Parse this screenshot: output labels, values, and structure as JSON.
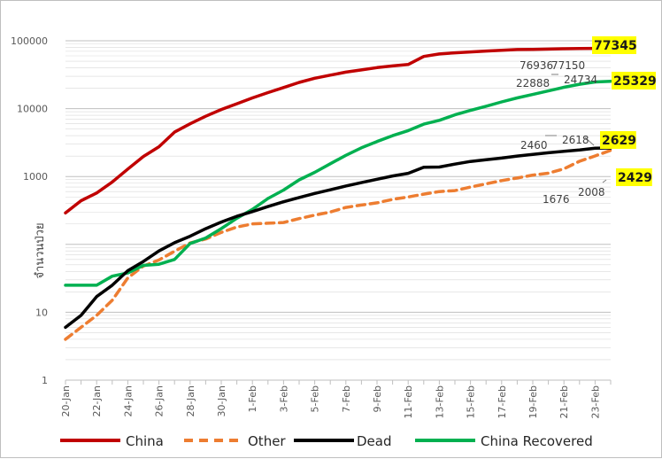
{
  "chart_data": {
    "type": "line",
    "title": "",
    "xlabel": "",
    "ylabel": "จำนวนป่วย",
    "yscale": "log",
    "ylim": [
      1,
      100000
    ],
    "yticks": [
      "1",
      "10",
      "1000",
      "10000",
      "100000"
    ],
    "grid": true,
    "legend_position": "bottom",
    "x": [
      "20-Jan",
      "21-Jan",
      "22-Jan",
      "23-Jan",
      "24-Jan",
      "25-Jan",
      "26-Jan",
      "27-Jan",
      "28-Jan",
      "29-Jan",
      "30-Jan",
      "31-Jan",
      "1-Feb",
      "2-Feb",
      "3-Feb",
      "4-Feb",
      "5-Feb",
      "6-Feb",
      "7-Feb",
      "8-Feb",
      "9-Feb",
      "10-Feb",
      "11-Feb",
      "12-Feb",
      "13-Feb",
      "14-Feb",
      "15-Feb",
      "16-Feb",
      "17-Feb",
      "18-Feb",
      "19-Feb",
      "20-Feb",
      "21-Feb",
      "22-Feb",
      "23-Feb",
      "24-Feb"
    ],
    "xtick_labels": [
      "20-Jan",
      "22-Jan",
      "24-Jan",
      "26-Jan",
      "28-Jan",
      "30-Jan",
      "1-Feb",
      "3-Feb",
      "5-Feb",
      "7-Feb",
      "9-Feb",
      "11-Feb",
      "13-Feb",
      "15-Feb",
      "17-Feb",
      "19-Feb",
      "21-Feb",
      "23-Feb"
    ],
    "series": [
      {
        "name": "China",
        "color": "#c00000",
        "dash": "solid",
        "values": [
          291,
          440,
          571,
          830,
          1287,
          1975,
          2744,
          4515,
          5974,
          7711,
          9692,
          11791,
          14380,
          17205,
          20438,
          24324,
          28018,
          31161,
          34546,
          37198,
          40171,
          42638,
          44653,
          58761,
          63851,
          66492,
          68500,
          70548,
          72436,
          74185,
          74576,
          75465,
          76288,
          76936,
          77150,
          77345
        ]
      },
      {
        "name": "Other",
        "color": "#ed7d31",
        "dash": "dashed",
        "values": [
          4,
          6,
          9,
          15,
          32,
          48,
          59,
          79,
          105,
          120,
          150,
          180,
          200,
          205,
          210,
          240,
          270,
          300,
          350,
          380,
          410,
          460,
          500,
          550,
          600,
          620,
          700,
          780,
          870,
          950,
          1050,
          1120,
          1300,
          1676,
          2008,
          2429
        ]
      },
      {
        "name": "Dead",
        "color": "#000000",
        "dash": "solid",
        "values": [
          6,
          9,
          17,
          25,
          41,
          56,
          80,
          106,
          132,
          170,
          213,
          259,
          304,
          361,
          425,
          490,
          563,
          638,
          724,
          813,
          910,
          1018,
          1115,
          1367,
          1380,
          1523,
          1665,
          1770,
          1868,
          2004,
          2118,
          2236,
          2345,
          2460,
          2618,
          2629
        ]
      },
      {
        "name": "China Recovered",
        "color": "#00b050",
        "dash": "solid",
        "values": [
          25,
          25,
          25,
          34,
          38,
          49,
          51,
          60,
          103,
          124,
          171,
          243,
          328,
          475,
          632,
          892,
          1153,
          1540,
          2050,
          2649,
          3281,
          3996,
          4740,
          5911,
          6723,
          8096,
          9419,
          10844,
          12552,
          14376,
          16155,
          18264,
          20659,
          22888,
          24734,
          25329
        ]
      }
    ],
    "data_labels": [
      {
        "series": "China",
        "text": "76936"
      },
      {
        "series": "China",
        "text": "77150"
      },
      {
        "series": "China",
        "text": "77345",
        "highlight": true
      },
      {
        "series": "China Recovered",
        "text": "22888"
      },
      {
        "series": "China Recovered",
        "text": "24734"
      },
      {
        "series": "China Recovered",
        "text": "25329",
        "highlight": true
      },
      {
        "series": "Dead",
        "text": "2460"
      },
      {
        "series": "Dead",
        "text": "2618"
      },
      {
        "series": "Dead",
        "text": "2629",
        "highlight": true
      },
      {
        "series": "Other",
        "text": "1676"
      },
      {
        "series": "Other",
        "text": "2008"
      },
      {
        "series": "Other",
        "text": "2429",
        "highlight": true
      }
    ],
    "highlight_color": "#ffff00",
    "gridline_color": "#d9d9d9"
  }
}
